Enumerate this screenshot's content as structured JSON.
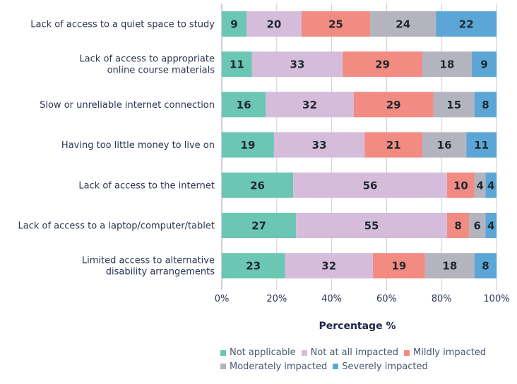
{
  "chart_data": {
    "type": "bar",
    "orientation": "horizontal",
    "stacked": true,
    "title": "",
    "xlabel": "Percentage %",
    "ylabel": "",
    "xlim": [
      0,
      100
    ],
    "x_ticks": [
      "0%",
      "20%",
      "40%",
      "60%",
      "80%",
      "100%"
    ],
    "grid": true,
    "legend_position": "bottom",
    "categories": [
      [
        "Lack of access to a quiet space to study"
      ],
      [
        "Lack of access to appropriate",
        "online course materials"
      ],
      [
        "Slow or unreliable internet connection"
      ],
      [
        "Having too little money to live on"
      ],
      [
        "Lack of access to the internet"
      ],
      [
        "Lack of access to a laptop/computer/tablet"
      ],
      [
        "Limited access to alternative",
        "disability arrangements"
      ]
    ],
    "series": [
      {
        "name": "Not applicable",
        "color": "#6cc6b4",
        "values": [
          9,
          11,
          16,
          19,
          26,
          27,
          23
        ]
      },
      {
        "name": "Not at all impacted",
        "color": "#d6bcdb",
        "values": [
          20,
          33,
          32,
          33,
          56,
          55,
          32
        ]
      },
      {
        "name": "Mildly impacted",
        "color": "#f28b82",
        "values": [
          25,
          29,
          29,
          21,
          10,
          8,
          19
        ]
      },
      {
        "name": "Moderately impacted",
        "color": "#b3b4bd",
        "values": [
          24,
          18,
          15,
          16,
          4,
          6,
          18
        ]
      },
      {
        "name": "Severely impacted",
        "color": "#5ba6d6",
        "values": [
          22,
          9,
          8,
          11,
          4,
          4,
          8
        ]
      }
    ]
  }
}
